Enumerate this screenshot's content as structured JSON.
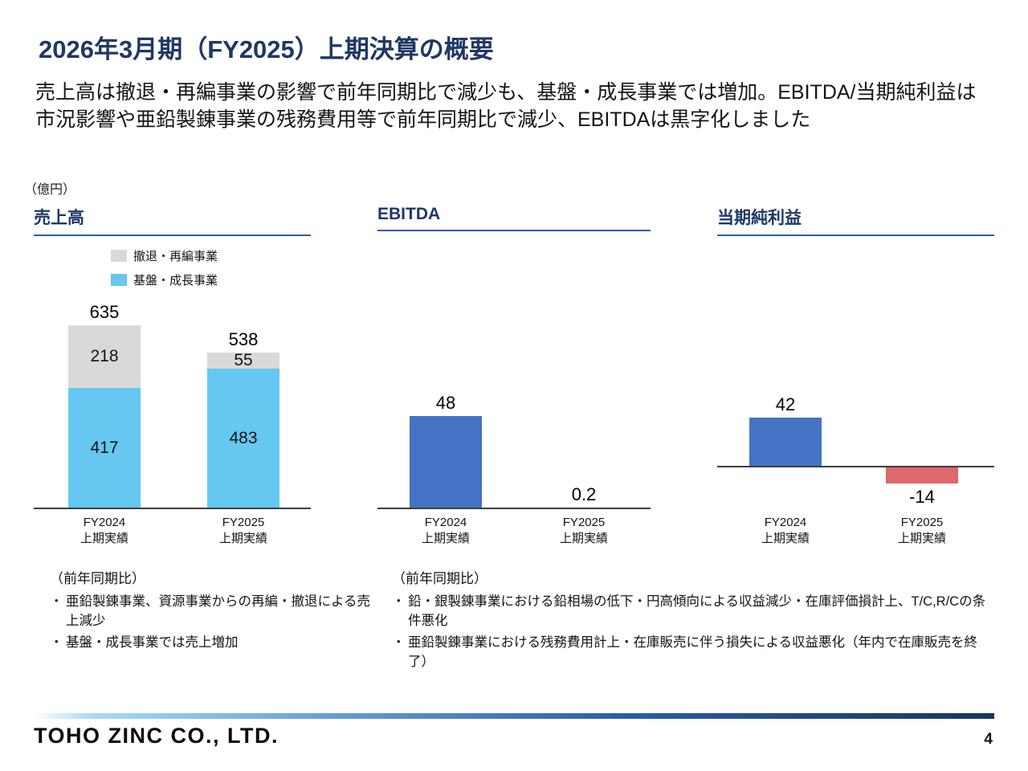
{
  "slide": {
    "title": "2026年3月期（FY2025）上期決算の概要",
    "lead": "売上高は撤退・再編事業の影響で前年同期比で減少も、基盤・成長事業では増加。EBITDA/当期純利益は市況影響や亜鉛製錬事業の残務費用等で前年同期比で減少、EBITDAは黒字化しました",
    "unit_label": "（億円）",
    "bullet_char": "・",
    "footer": {
      "logo": "TOHO ZINC CO., LTD.",
      "page_number": "4"
    }
  },
  "colors": {
    "accent_navy": "#1f3864",
    "header_underline": "#2d5fa8",
    "axis": "#3f3f3f"
  },
  "chart_data": [
    {
      "type": "bar",
      "stacked": true,
      "title": "売上高",
      "categories": [
        [
          "FY2024",
          "上期実績"
        ],
        [
          "FY2025",
          "上期実績"
        ]
      ],
      "series": [
        {
          "name": "撤退・再編事業",
          "values": [
            218,
            55
          ],
          "color": "#d9d9d9"
        },
        {
          "name": "基盤・成長事業",
          "values": [
            417,
            483
          ],
          "color": "#66c7f0"
        }
      ],
      "totals": [
        635,
        538
      ],
      "ylim": [
        0,
        700
      ],
      "legend_position": "top-left",
      "grid": false
    },
    {
      "type": "bar",
      "stacked": false,
      "title": "EBITDA",
      "categories": [
        [
          "FY2024",
          "上期実績"
        ],
        [
          "FY2025",
          "上期実績"
        ]
      ],
      "series": [
        {
          "name": "EBITDA",
          "values": [
            48,
            0.2
          ],
          "color": "#4472c4"
        }
      ],
      "ylim": [
        0,
        60
      ],
      "grid": false
    },
    {
      "type": "bar",
      "stacked": false,
      "title": "当期純利益",
      "categories": [
        [
          "FY2024",
          "上期実績"
        ],
        [
          "FY2025",
          "上期実績"
        ]
      ],
      "series": [
        {
          "name": "当期純利益",
          "values": [
            42,
            -14
          ]
        }
      ],
      "colors": {
        "positive": "#4472c4",
        "negative": "#dd686e"
      },
      "ylim": [
        -20,
        60
      ],
      "grid": false
    }
  ],
  "notes": [
    {
      "heading": "（前年同期比）",
      "items": [
        "亜鉛製錬事業、資源事業からの再編・撤退による売上減少",
        "基盤・成長事業では売上増加"
      ]
    },
    {
      "heading": "（前年同期比）",
      "items": [
        "鉛・銀製錬事業における鉛相場の低下・円高傾向による収益減少・在庫評価損計上、T/C,R/Cの条件悪化",
        "亜鉛製錬事業における残務費用計上・在庫販売に伴う損失による収益悪化（年内で在庫販売を終了）"
      ]
    }
  ]
}
